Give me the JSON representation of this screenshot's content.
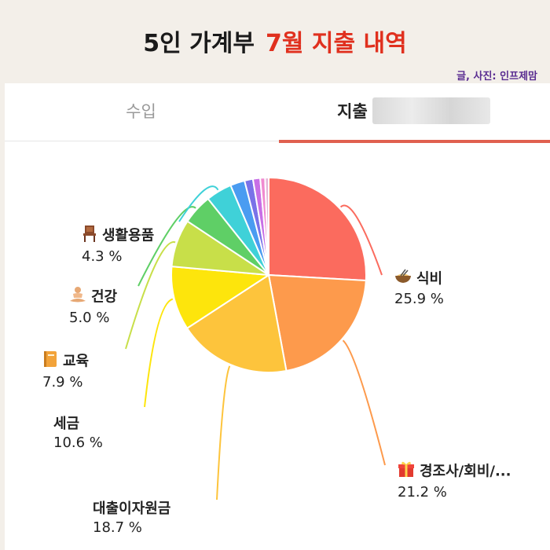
{
  "header": {
    "title_part1": "5인 가계부",
    "title_part2": "7월 지출 내역",
    "credit": "글, 사진: 인프제맘"
  },
  "tabs": [
    {
      "label": "수입",
      "active": false
    },
    {
      "label": "지출",
      "active": true
    }
  ],
  "colors": {
    "accent": "#e0604f",
    "title_red": "#e0301e",
    "credit_purple": "#5a2d91"
  },
  "chart_data": {
    "type": "pie",
    "title": "",
    "slices": [
      {
        "label": "식비",
        "value": 25.9,
        "pct_label": "25.9 %",
        "color": "#fb6b5e",
        "icon": "noodle-bowl-icon"
      },
      {
        "label": "경조사/회비/...",
        "value": 21.2,
        "pct_label": "21.2 %",
        "color": "#fd9a4c",
        "icon": "gift-icon"
      },
      {
        "label": "대출이자원금",
        "value": 18.7,
        "pct_label": "18.7 %",
        "color": "#fdc43c",
        "icon": ""
      },
      {
        "label": "세금",
        "value": 10.6,
        "pct_label": "10.6 %",
        "color": "#fde50c",
        "icon": ""
      },
      {
        "label": "교육",
        "value": 7.9,
        "pct_label": "7.9 %",
        "color": "#c8df49",
        "icon": "book-icon"
      },
      {
        "label": "건강",
        "value": 5.0,
        "pct_label": "5.0 %",
        "color": "#5fcf66",
        "icon": "meditation-icon"
      },
      {
        "label": "생활용품",
        "value": 4.3,
        "pct_label": "4.3 %",
        "color": "#3fd1d8",
        "icon": "chair-icon"
      },
      {
        "label": "",
        "value": 2.4,
        "pct_label": "",
        "color": "#4a9cf1",
        "icon": ""
      },
      {
        "label": "",
        "value": 1.4,
        "pct_label": "",
        "color": "#7a72e8",
        "icon": ""
      },
      {
        "label": "",
        "value": 1.2,
        "pct_label": "",
        "color": "#c86fe6",
        "icon": ""
      },
      {
        "label": "",
        "value": 0.8,
        "pct_label": "",
        "color": "#f08ad0",
        "icon": ""
      },
      {
        "label": "",
        "value": 0.6,
        "pct_label": "",
        "color": "#e5b3d8",
        "icon": ""
      }
    ]
  }
}
